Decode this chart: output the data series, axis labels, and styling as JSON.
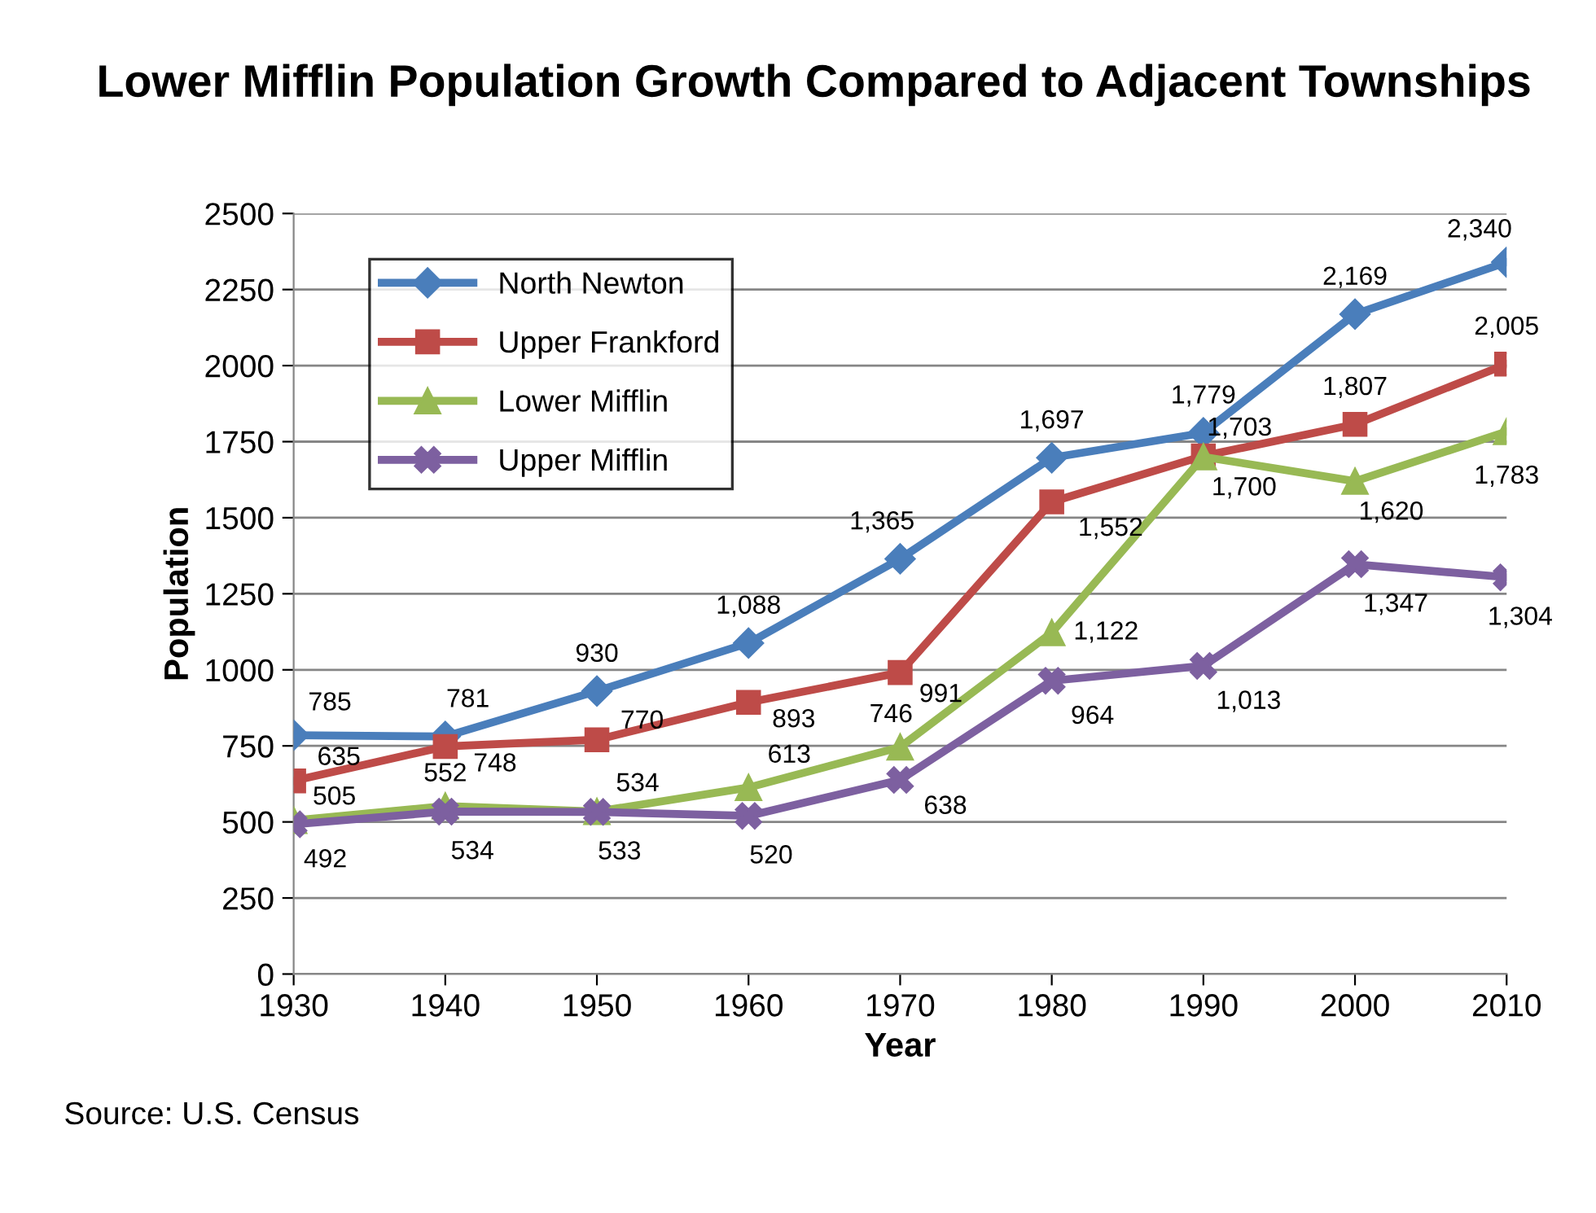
{
  "chart_data": {
    "type": "line",
    "title": "Lower Mifflin Population Growth Compared to Adjacent Townships",
    "xlabel": "Year",
    "ylabel": "Population",
    "x": [
      1930,
      1940,
      1950,
      1960,
      1970,
      1980,
      1990,
      2000,
      2010
    ],
    "xlim": [
      1930,
      2010
    ],
    "xticks": [
      1930,
      1940,
      1950,
      1960,
      1970,
      1980,
      1990,
      2000,
      2010
    ],
    "ylim": [
      0,
      2500
    ],
    "yticks": [
      0,
      250,
      500,
      750,
      1000,
      1250,
      1500,
      1750,
      2000,
      2250,
      2500
    ],
    "grid": "y",
    "legend": "top left",
    "series": [
      {
        "name": "North Newton",
        "color": "#4a7ebb",
        "marker": "diamond",
        "values": [
          785,
          781,
          930,
          1088,
          1365,
          1697,
          1779,
          2169,
          2340
        ],
        "value_labels": [
          "785",
          "781",
          "930",
          "1,088",
          "1,365",
          "1,697",
          "1,779",
          "2,169",
          "2,340"
        ]
      },
      {
        "name": "Upper Frankford",
        "color": "#be4b48",
        "marker": "square",
        "values": [
          635,
          748,
          770,
          893,
          991,
          1552,
          1703,
          1807,
          2005
        ],
        "value_labels": [
          "635",
          "748",
          "770",
          "893",
          "991",
          "1,552",
          "1,703",
          "1,807",
          "2,005"
        ]
      },
      {
        "name": "Lower Mifflin",
        "color": "#98b954",
        "marker": "triangle",
        "values": [
          505,
          552,
          534,
          613,
          746,
          1122,
          1700,
          1620,
          1783
        ],
        "value_labels": [
          "505",
          "552",
          "534",
          "613",
          "746",
          "1,122",
          "1,700",
          "1,620",
          "1,783"
        ]
      },
      {
        "name": "Upper Mifflin",
        "color": "#7d60a0",
        "marker": "cross",
        "values": [
          492,
          534,
          533,
          520,
          638,
          964,
          1013,
          1347,
          1304
        ],
        "value_labels": [
          "492",
          "534",
          "533",
          "520",
          "638",
          "964",
          "1,013",
          "1,347",
          "1,304"
        ]
      }
    ],
    "annotations": [
      "Source: U.S. Census"
    ]
  }
}
